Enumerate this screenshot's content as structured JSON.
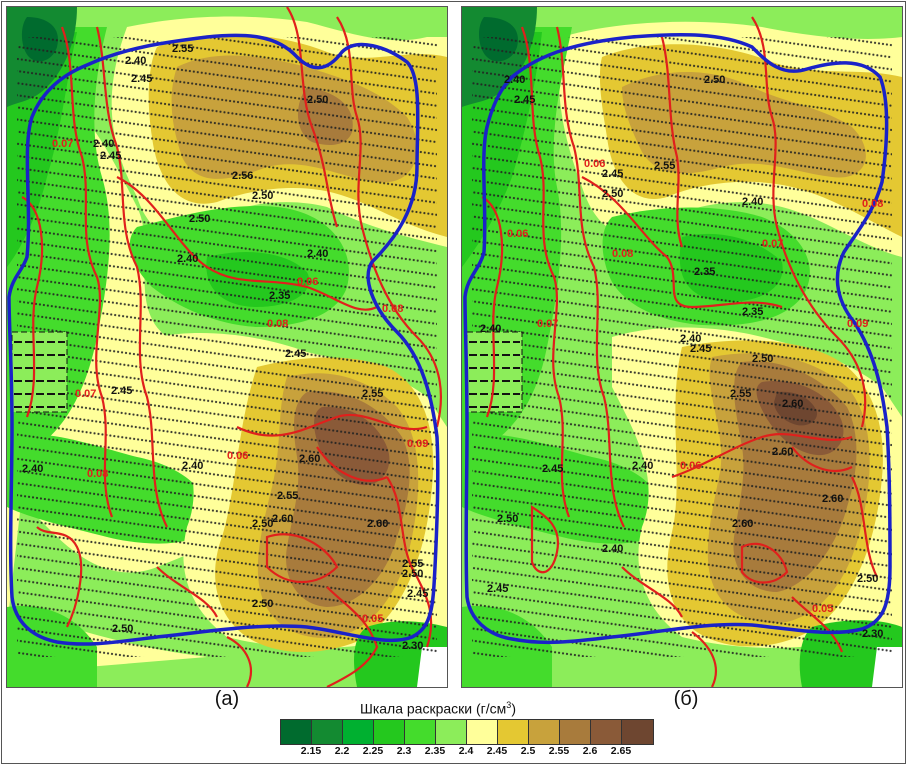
{
  "panels": [
    {
      "id": "a",
      "label": "(а)"
    },
    {
      "id": "b",
      "label": "(б)"
    }
  ],
  "legend": {
    "title": "Шкала раскраски (г/см",
    "title_sup": "3",
    "title_end": ")",
    "ticks": [
      "2.15",
      "2.2",
      "2.25",
      "2.3",
      "2.35",
      "2.4",
      "2.45",
      "2.5",
      "2.55",
      "2.6",
      "2.65"
    ],
    "colors": [
      "#006b2e",
      "#138a31",
      "#00b030",
      "#24c81e",
      "#44dc2c",
      "#8ced5a",
      "#ffff9a",
      "#e4c832",
      "#c8a23c",
      "#a87b3c",
      "#8a5a38",
      "#6e4630"
    ]
  },
  "contour_labels_a": [
    "2.40",
    "2.45",
    "2.55",
    "2.50",
    "2.56",
    "2.50",
    "2.50",
    "2.40",
    "2.35",
    "0.06",
    "0.07",
    "0.08",
    "2.40",
    "2.45",
    "2.40",
    "2.45",
    "2.55",
    "2.60",
    "2.60",
    "2.50",
    "2.60",
    "2.55",
    "2.55",
    "2.50",
    "2.45",
    "2.40",
    "2.30",
    "0.06",
    "0.05",
    "0.08",
    "0.07",
    "0.09",
    "0.08",
    "2.45",
    "2.50",
    "2.40",
    "2.50"
  ],
  "contour_labels_b": [
    "2.40",
    "2.45",
    "2.50",
    "2.55",
    "2.50",
    "2.45",
    "2.40",
    "2.35",
    "2.35",
    "2.40",
    "2.40",
    "2.45",
    "2.50",
    "2.60",
    "2.60",
    "2.60",
    "2.60",
    "2.55",
    "2.50",
    "2.45",
    "2.40",
    "2.30",
    "2.50",
    "2.45",
    "2.40",
    "0.06",
    "0.07",
    "0.08",
    "0.09",
    "0.06",
    "0.05",
    "0.06",
    "0.07",
    "0.08"
  ]
}
